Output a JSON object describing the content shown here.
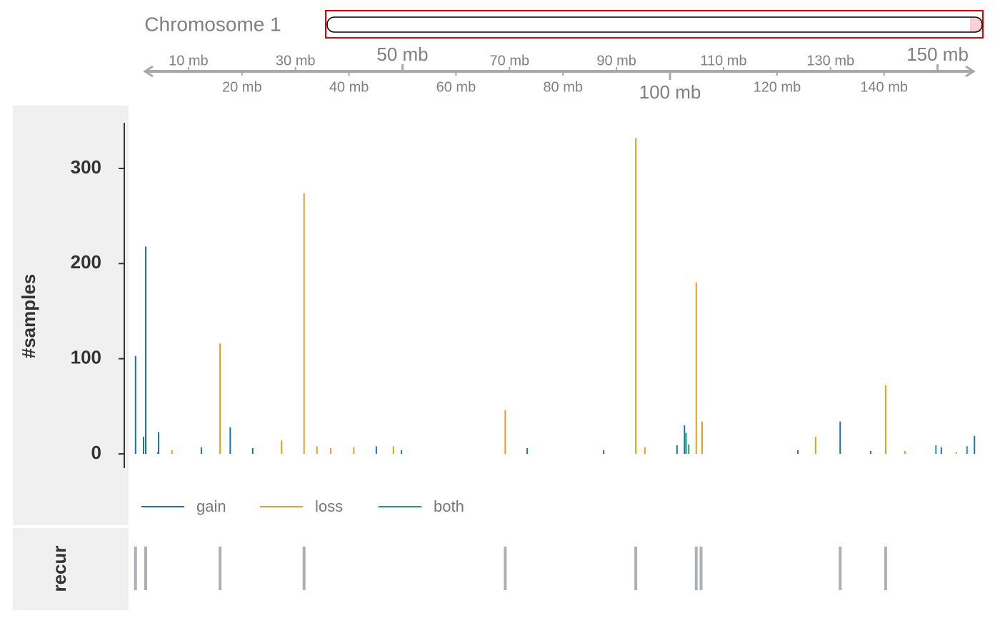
{
  "chart_data": {
    "type": "spike",
    "title": "Chromosome 1",
    "y_label": "#samples",
    "recur_label": "recur",
    "xlim": [
      0,
      157
    ],
    "xticks": [
      {
        "value": 10,
        "label": "10 mb"
      },
      {
        "value": 20,
        "label": "20 mb"
      },
      {
        "value": 30,
        "label": "30 mb"
      },
      {
        "value": 40,
        "label": "40 mb"
      },
      {
        "value": 50,
        "label": "50 mb"
      },
      {
        "value": 60,
        "label": "60 mb"
      },
      {
        "value": 70,
        "label": "70 mb"
      },
      {
        "value": 80,
        "label": "80 mb"
      },
      {
        "value": 90,
        "label": "90 mb"
      },
      {
        "value": 100,
        "label": "100 mb"
      },
      {
        "value": 110,
        "label": "110 mb"
      },
      {
        "value": 120,
        "label": "120 mb"
      },
      {
        "value": 130,
        "label": "130 mb"
      },
      {
        "value": 140,
        "label": "140 mb"
      },
      {
        "value": 150,
        "label": "150 mb"
      }
    ],
    "ylim": [
      -15,
      348
    ],
    "yticks": [
      0,
      100,
      200,
      300
    ],
    "series": [
      {
        "name": "gain",
        "color": "#1a74a8",
        "x": [
          0.1,
          1.6,
          2.0,
          4.3,
          4.4,
          12.4,
          17.8,
          22.0,
          45.1,
          49.8,
          73.3,
          87.6,
          101.3,
          102.7,
          123.9,
          131.8,
          137.5,
          150.7,
          156.9
        ],
        "values": [
          103,
          18,
          218,
          2,
          23,
          7,
          28,
          6,
          8,
          4,
          6,
          4,
          9,
          30,
          4,
          34,
          3,
          7,
          19
        ]
      },
      {
        "name": "loss",
        "color": "#e0a020",
        "x": [
          6.9,
          15.9,
          27.4,
          31.6,
          34.0,
          36.6,
          40.9,
          48.3,
          69.2,
          93.6,
          95.3,
          104.9,
          106.0,
          127.2,
          140.3,
          143.9,
          153.5
        ],
        "values": [
          4,
          116,
          14,
          274,
          8,
          6,
          7,
          8,
          46,
          332,
          7,
          180,
          34,
          18,
          72,
          3,
          2
        ]
      },
      {
        "name": "both",
        "color": "#1a9e78",
        "x": [
          103.0,
          103.5,
          149.7,
          155.5
        ],
        "values": [
          22,
          10,
          9,
          8
        ]
      }
    ],
    "recur": {
      "color": "#aab0b3",
      "x": [
        0.1,
        2.0,
        15.9,
        31.6,
        69.2,
        93.6,
        104.9,
        105.8,
        131.8,
        140.3
      ]
    }
  }
}
